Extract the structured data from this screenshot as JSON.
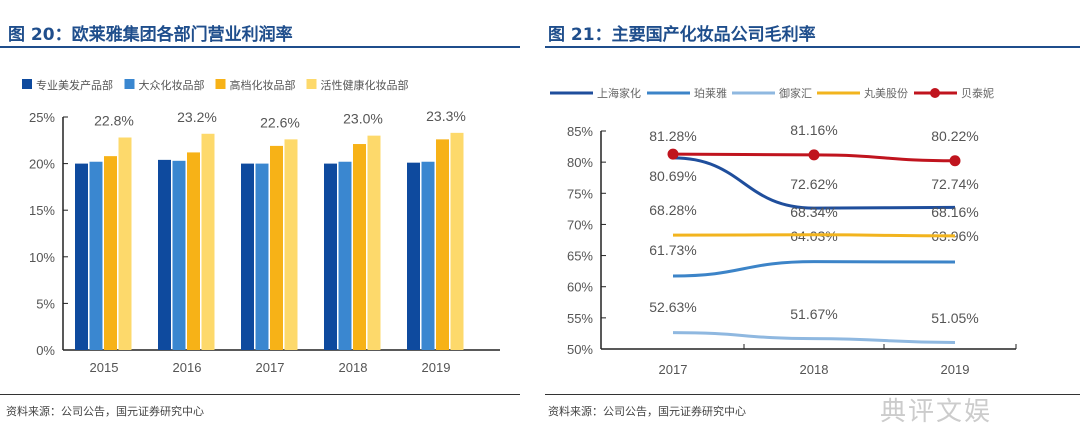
{
  "left": {
    "title": "图 20：欧莱雅集团各部门营业利润率",
    "source": "资料来源：公司公告，国元证券研究中心"
  },
  "right": {
    "title": "图 21：主要国产化妆品公司毛利率",
    "source": "资料来源：公司公告，国元证券研究中心"
  },
  "watermark": "典评文娱",
  "chart_data": [
    {
      "type": "bar",
      "categories": [
        "2015",
        "2016",
        "2017",
        "2018",
        "2019"
      ],
      "ylim": [
        0,
        25
      ],
      "yticks": [
        "0%",
        "5%",
        "10%",
        "15%",
        "20%",
        "25%"
      ],
      "legend": "top",
      "grid": false,
      "series": [
        {
          "name": "专业美发产品部",
          "color": "#0e4a9e",
          "values": [
            20.0,
            20.4,
            20.0,
            20.0,
            20.1
          ]
        },
        {
          "name": "大众化妆品部",
          "color": "#3a87d0",
          "values": [
            20.2,
            20.3,
            20.0,
            20.2,
            20.2
          ]
        },
        {
          "name": "高档化妆品部",
          "color": "#f7b217",
          "values": [
            20.8,
            21.2,
            21.9,
            22.1,
            22.6
          ]
        },
        {
          "name": "活性健康化妆品部",
          "color": "#fdd96b",
          "values": [
            22.8,
            23.2,
            22.6,
            23.0,
            23.3
          ]
        }
      ],
      "data_labels": [
        "22.8%",
        "23.2%",
        "22.6%",
        "23.0%",
        "23.3%"
      ]
    },
    {
      "type": "line",
      "categories": [
        "2017",
        "2018",
        "2019"
      ],
      "ylim": [
        50,
        85
      ],
      "yticks": [
        "50%",
        "55%",
        "60%",
        "65%",
        "70%",
        "75%",
        "80%",
        "85%"
      ],
      "legend": "top",
      "grid": false,
      "series": [
        {
          "name": "上海家化",
          "color": "#1f4e9c",
          "values": [
            80.69,
            72.62,
            72.74
          ],
          "labels": [
            "80.69%",
            "72.62%",
            "72.74%"
          ]
        },
        {
          "name": "珀莱雅",
          "color": "#3c84c8",
          "values": [
            61.73,
            64.03,
            63.96
          ],
          "labels": [
            "61.73%",
            "64.03%",
            "63.96%"
          ]
        },
        {
          "name": "御家汇",
          "color": "#8fb8e0",
          "values": [
            52.63,
            51.67,
            51.05
          ],
          "labels": [
            "52.63%",
            "51.67%",
            "51.05%"
          ]
        },
        {
          "name": "丸美股份",
          "color": "#f2b41e",
          "values": [
            68.28,
            68.34,
            68.16
          ],
          "labels": [
            "68.28%",
            "68.34%",
            "68.16%"
          ]
        },
        {
          "name": "贝泰妮",
          "color": "#c0141e",
          "values": [
            81.28,
            81.16,
            80.22
          ],
          "labels": [
            "81.28%",
            "81.16%",
            "80.22%"
          ],
          "markers": true
        }
      ]
    }
  ]
}
